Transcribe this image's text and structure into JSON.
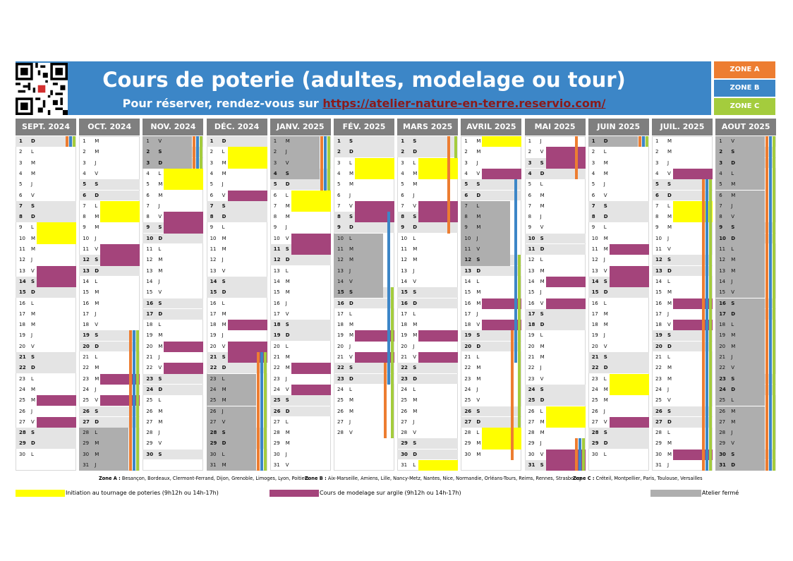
{
  "header": {
    "title": "Cours de poterie (adultes, modelage ou tour)",
    "subtitle_prefix": "Pour réserver, rendez-vous sur ",
    "link_text": "https://atelier-nature-en-terre.reservio.com/"
  },
  "qr_code": {
    "icon": "qr-code-icon"
  },
  "zones": [
    {
      "label": "ZONE A",
      "color": "#ed7d31"
    },
    {
      "label": "ZONE B",
      "color": "#3c86c7"
    },
    {
      "label": "ZONE C",
      "color": "#a4cc3d"
    }
  ],
  "colors": {
    "initiation": "#ffff00",
    "modelage": "#a4447b",
    "ferme": "#aeaeae",
    "weekend_row": "#e4e4e4",
    "month_header": "#7f7f7f"
  },
  "zone_legend": {
    "a_label": "Zone A :",
    "a_text": " Besançon, Bordeaux, Clermont-Ferrand, Dijon, Grenoble, Limoges, Lyon, Poitiers",
    "b_label": "Zone B :",
    "b_text": " Aix-Marseille, Amiens, Lille, Nancy-Metz, Nantes, Nice, Normandie, Orléans-Tours, Reims, Rennes, Strasbourg",
    "c_label": "Zone C :",
    "c_text": " Créteil, Montpellier, Paris, Toulouse, Versailles"
  },
  "legend": {
    "initiation": "Initiation au tournage de poteries (9h12h ou 14h-17h)",
    "modelage": "Cours de modelage sur argile (9h12h ou 14h-17h)",
    "ferme": "Atelier fermé"
  },
  "calendar": {
    "months": [
      {
        "name": "SEPT. 2024",
        "start": 0,
        "days": 30,
        "initiation": [
          9,
          10
        ],
        "modelage": [
          13,
          14,
          25,
          27
        ],
        "ferme": [],
        "zones": {
          "A": [
            [
              1,
              1
            ]
          ],
          "B": [
            [
              1,
              1
            ]
          ],
          "C": [
            [
              1,
              1
            ]
          ]
        }
      },
      {
        "name": "OCT. 2024",
        "start": 2,
        "days": 31,
        "initiation": [
          7,
          8
        ],
        "modelage": [
          11,
          12,
          23,
          25
        ],
        "ferme": [
          28,
          29,
          30,
          31
        ],
        "zones": {
          "A": [
            [
              19,
              31
            ]
          ],
          "B": [
            [
              19,
              31
            ]
          ],
          "C": [
            [
              19,
              31
            ]
          ]
        }
      },
      {
        "name": "NOV. 2024",
        "start": 5,
        "days": 30,
        "initiation": [
          4,
          5
        ],
        "modelage": [
          8,
          9,
          20,
          22
        ],
        "ferme": [
          1,
          2,
          3
        ],
        "zones": {
          "A": [
            [
              1,
              3
            ]
          ],
          "B": [
            [
              1,
              3
            ]
          ],
          "C": [
            [
              1,
              3
            ]
          ]
        }
      },
      {
        "name": "DÉC. 2024",
        "start": 0,
        "days": 31,
        "initiation": [
          2,
          3
        ],
        "modelage": [
          6,
          18,
          20,
          21
        ],
        "ferme": [
          23,
          24,
          25,
          26,
          27,
          28,
          29,
          30,
          31
        ],
        "zones": {
          "A": [
            [
              21,
              31
            ]
          ],
          "B": [
            [
              21,
              31
            ]
          ],
          "C": [
            [
              21,
              31
            ]
          ]
        }
      },
      {
        "name": "JANV. 2025",
        "start": 3,
        "days": 31,
        "initiation": [
          6,
          7
        ],
        "modelage": [
          10,
          11,
          22,
          24
        ],
        "ferme": [
          1,
          2,
          3,
          4
        ],
        "zones": {
          "A": [
            [
              1,
              5
            ]
          ],
          "B": [
            [
              1,
              5
            ]
          ],
          "C": [
            [
              1,
              5
            ]
          ]
        }
      },
      {
        "name": "FÉV. 2025",
        "start": 6,
        "days": 28,
        "initiation": [
          3,
          4
        ],
        "modelage": [
          7,
          8,
          19,
          21
        ],
        "ferme": [
          10,
          11,
          12,
          13,
          14,
          15
        ],
        "zones": {
          "A": [
            [
              22,
              28
            ]
          ],
          "B": [
            [
              8,
              23
            ]
          ],
          "C": [
            [
              15,
              28
            ]
          ]
        }
      },
      {
        "name": "MARS 2025",
        "start": 6,
        "days": 31,
        "initiation": [
          3,
          4,
          31
        ],
        "modelage": [
          7,
          8,
          19,
          21
        ],
        "ferme": [],
        "zones": {
          "A": [
            [
              1,
              9
            ]
          ],
          "B": [],
          "C": [
            [
              1,
              2
            ]
          ]
        }
      },
      {
        "name": "AVRIL 2025",
        "start": 2,
        "days": 30,
        "initiation": [
          1,
          28,
          29
        ],
        "modelage": [
          4,
          16,
          18
        ],
        "ferme": [
          7,
          8,
          9,
          10,
          11,
          12
        ],
        "zones": {
          "A": [
            [
              19,
              30
            ]
          ],
          "B": [
            [
              5,
              21
            ]
          ],
          "C": [
            [
              12,
              27
            ]
          ]
        }
      },
      {
        "name": "MAI 2025",
        "start": 4,
        "days": 31,
        "initiation": [
          26,
          27
        ],
        "modelage": [
          2,
          3,
          14,
          16,
          30,
          31
        ],
        "ferme": [],
        "zones": {
          "A": [
            [
              1,
              4
            ],
            [
              29,
              31
            ]
          ],
          "B": [
            [
              29,
              31
            ]
          ],
          "C": [
            [
              29,
              31
            ]
          ]
        }
      },
      {
        "name": "JUIN 2025",
        "start": 0,
        "days": 30,
        "initiation": [
          23,
          24
        ],
        "modelage": [
          11,
          13,
          14,
          27
        ],
        "ferme": [
          1
        ],
        "zones": {
          "A": [
            [
              1,
              1
            ]
          ],
          "B": [
            [
              1,
              1
            ]
          ],
          "C": [
            [
              1,
              1
            ]
          ]
        }
      },
      {
        "name": "JUIL. 2025",
        "start": 2,
        "days": 31,
        "initiation": [
          7,
          8
        ],
        "modelage": [
          4,
          16,
          18,
          30
        ],
        "ferme": [],
        "zones": {
          "A": [
            [
              5,
              31
            ]
          ],
          "B": [
            [
              5,
              31
            ]
          ],
          "C": [
            [
              5,
              31
            ]
          ]
        }
      },
      {
        "name": "AOUT 2025",
        "start": 5,
        "days": 31,
        "initiation": [],
        "modelage": [],
        "ferme": [
          1,
          2,
          3,
          4,
          5,
          6,
          7,
          8,
          9,
          10,
          11,
          12,
          13,
          14,
          15,
          16,
          17,
          18,
          19,
          20,
          21,
          22,
          23,
          24,
          25,
          26,
          27,
          28,
          29,
          30,
          31
        ],
        "zones": {
          "A": [
            [
              1,
              31
            ]
          ],
          "B": [
            [
              1,
              31
            ]
          ],
          "C": [
            [
              1,
              31
            ]
          ]
        }
      }
    ],
    "weekday_letters": [
      "D",
      "L",
      "M",
      "M",
      "J",
      "V",
      "S"
    ]
  }
}
